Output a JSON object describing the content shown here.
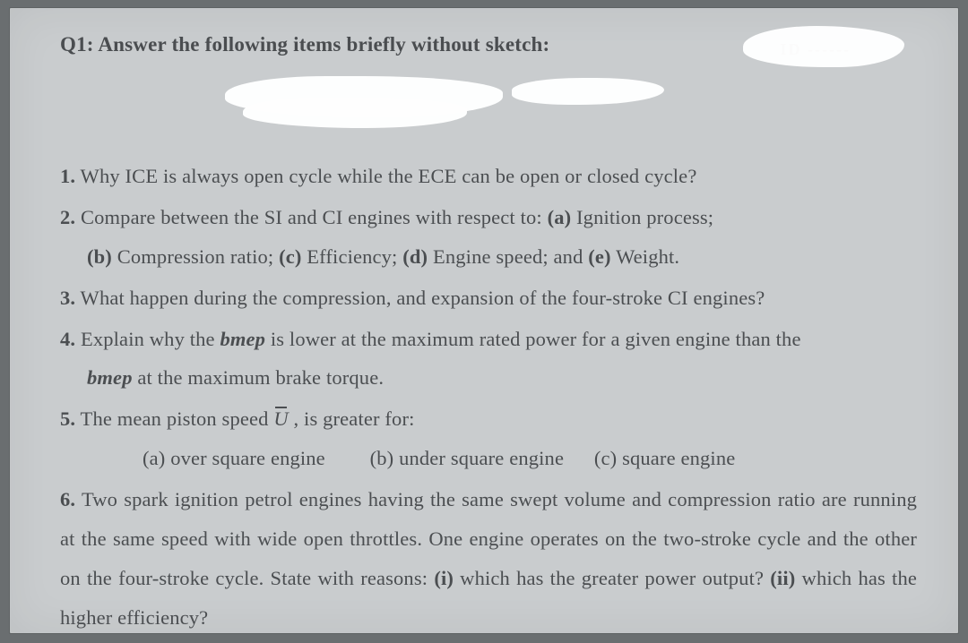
{
  "header": {
    "label": "Q1: Answer the following items briefly without sketch:",
    "dashes": "ID  ------"
  },
  "items": {
    "n1": "1.",
    "t1": " Why ICE is always open cycle while the ECE can be open or closed cycle?",
    "n2": "2.",
    "t2a": " Compare between the SI and CI engines with respect to: ",
    "t2b": "(a)",
    "t2c": " Ignition process; ",
    "t2d": "(b)",
    "t2e": " Compression ratio; ",
    "t2f": "(c)",
    "t2g": " Efficiency; ",
    "t2h": "(d)",
    "t2i": " Engine speed; and ",
    "t2j": "(e)",
    "t2k": " Weight.",
    "n3": "3.",
    "t3": " What happen during the compression, and expansion of the four-stroke CI engines?",
    "n4": "4.",
    "t4a": " Explain why the ",
    "t4b": "bmep",
    "t4c": " is lower at the maximum rated power for a given engine than the ",
    "t4d": "bmep",
    "t4e": " at the maximum brake torque.",
    "n5": "5.",
    "t5a": " The mean piston speed ",
    "t5u": "U",
    "t5b": " , is greater for:",
    "o5a": "(a) over square engine",
    "o5b": "(b) under square engine",
    "o5c": "(c) square engine",
    "n6": "6.",
    "t6a": " Two spark ignition petrol engines having the same swept volume and compression ratio are running at the same speed with wide open throttles. One engine operates on the two-stroke cycle and the other on the four-stroke cycle. State with reasons: ",
    "t6b": "(i)",
    "t6c": " which has the greater power output? ",
    "t6d": "(ii)",
    "t6e": " which has the higher efficiency?"
  },
  "colors": {
    "page_bg": "#c9ccce",
    "outer_bg": "#6a6e70",
    "text": "#4b4e51",
    "white": "#ffffff"
  }
}
